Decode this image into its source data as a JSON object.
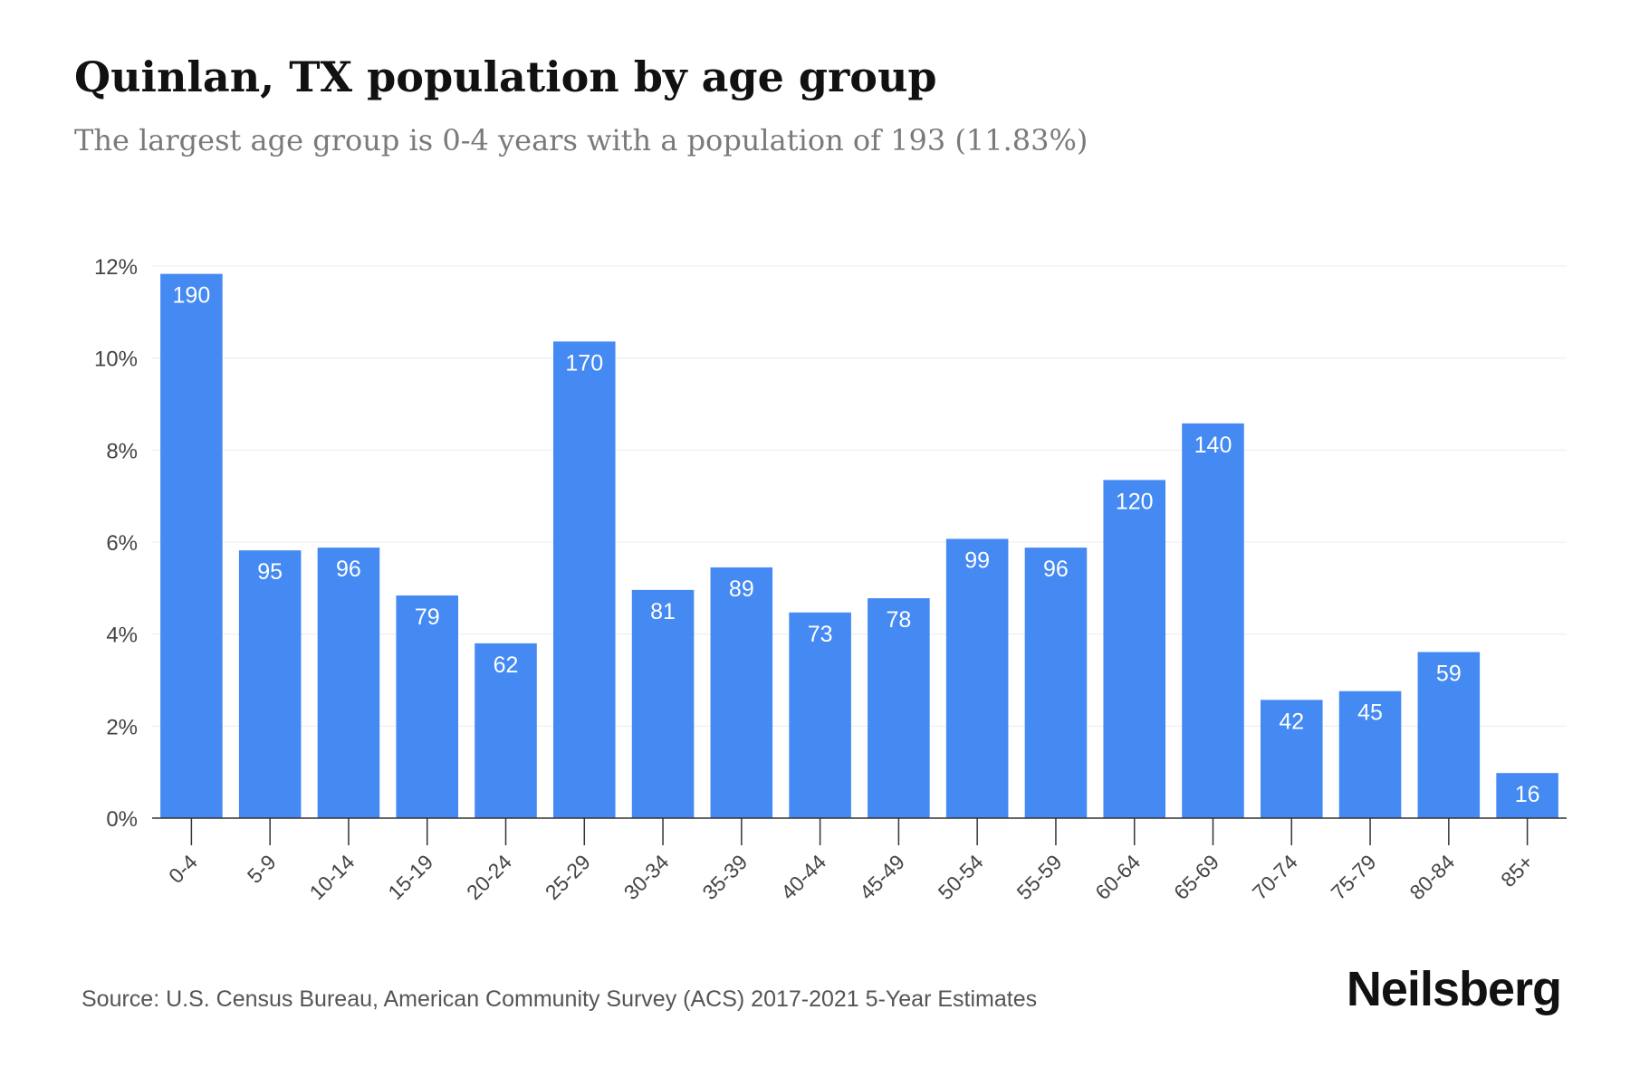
{
  "brand": "Neilsberg",
  "source": "Source: U.S. Census Bureau, American Community Survey (ACS) 2017-2021 5-Year Estimates",
  "colors": {
    "bar": "#4589f2",
    "bar_label": "#ffffff",
    "grid": "#ececec",
    "axis": "#333333",
    "tick_text": "#444444"
  },
  "chart_data": {
    "type": "bar",
    "title": "Quinlan, TX population by age group",
    "subtitle": "The largest age group is 0-4 years with a population of 193 (11.83%)",
    "categories": [
      "0-4",
      "5-9",
      "10-14",
      "15-19",
      "20-24",
      "25-29",
      "30-34",
      "35-39",
      "40-44",
      "45-49",
      "50-54",
      "55-59",
      "60-64",
      "65-69",
      "70-74",
      "75-79",
      "80-84",
      "85+"
    ],
    "values": [
      11.83,
      5.82,
      5.88,
      4.84,
      3.8,
      10.36,
      4.96,
      5.45,
      4.47,
      4.78,
      6.07,
      5.88,
      7.35,
      8.58,
      2.57,
      2.76,
      3.61,
      0.98
    ],
    "data_labels": [
      "190",
      "95",
      "96",
      "79",
      "62",
      "170",
      "81",
      "89",
      "73",
      "78",
      "99",
      "96",
      "120",
      "140",
      "42",
      "45",
      "59",
      "16"
    ],
    "y_ticks": [
      0,
      2,
      4,
      6,
      8,
      10,
      12
    ],
    "y_tick_labels": [
      "0%",
      "2%",
      "4%",
      "6%",
      "8%",
      "10%",
      "12%"
    ],
    "ylim": [
      0,
      12
    ],
    "grid": true,
    "xlabel": "",
    "ylabel": ""
  }
}
